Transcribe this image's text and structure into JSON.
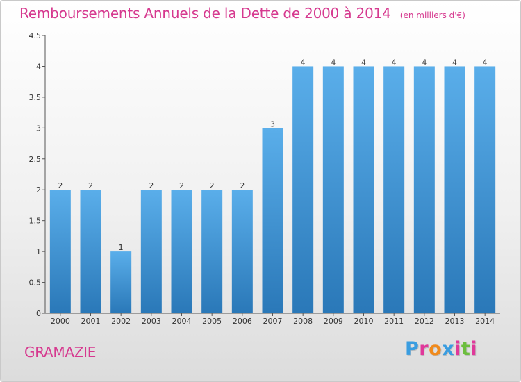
{
  "header": {
    "title": "Remboursements Annuels de la Dette de 2000 à 2014",
    "unit": "(en milliers d'€)"
  },
  "footer": {
    "commune": "GRAMAZIE",
    "logo": "Proxiti",
    "logo_colors": [
      "#3a9de0",
      "#e0389a",
      "#f08a1c",
      "#3a9de0",
      "#e0389a",
      "#6cbe3e",
      "#e0389a"
    ]
  },
  "colors": {
    "bar_light": "#5aaeea",
    "bar_dark": "#2a78b8",
    "title": "#d6398f",
    "axis": "#555555"
  },
  "chart_data": {
    "type": "bar",
    "categories": [
      "2000",
      "2001",
      "2002",
      "2003",
      "2004",
      "2005",
      "2006",
      "2007",
      "2008",
      "2009",
      "2010",
      "2011",
      "2012",
      "2013",
      "2014"
    ],
    "values": [
      2,
      2,
      1,
      2,
      2,
      2,
      2,
      3,
      4,
      4,
      4,
      4,
      4,
      4,
      4
    ],
    "data_labels": [
      "2",
      "2",
      "1",
      "2",
      "2",
      "2",
      "2",
      "3",
      "4",
      "4",
      "4",
      "4",
      "4",
      "4",
      "4"
    ],
    "y_ticks": [
      "0",
      "0.5",
      "1",
      "1.5",
      "2",
      "2.5",
      "3",
      "3.5",
      "4",
      "4.5"
    ],
    "ylim": [
      0,
      4.5
    ],
    "grid": false
  }
}
